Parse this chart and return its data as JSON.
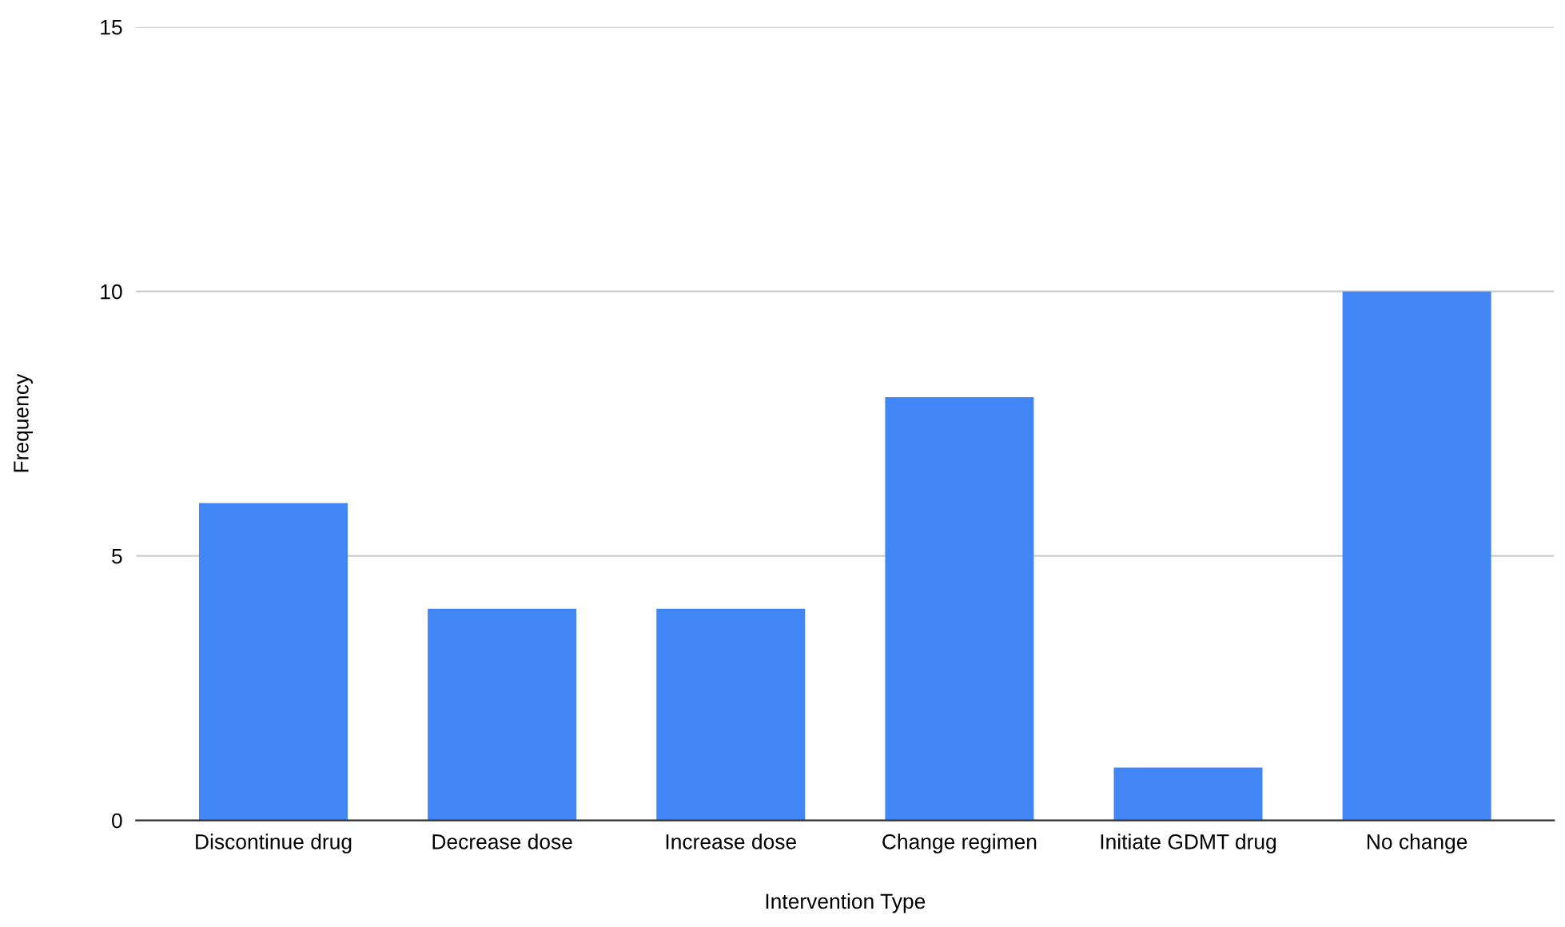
{
  "chart_data": {
    "type": "bar",
    "xlabel": "Intervention Type",
    "ylabel": "Frequency",
    "categories": [
      "Discontinue drug",
      "Decrease dose",
      "Increase dose",
      "Change regimen",
      "Initiate GDMT drug",
      "No change"
    ],
    "values": [
      6,
      4,
      4,
      8,
      1,
      10
    ],
    "color": "#4285f4",
    "ylim": [
      0,
      15
    ],
    "yticks": [
      0,
      5,
      10,
      15
    ],
    "grid": "y"
  }
}
